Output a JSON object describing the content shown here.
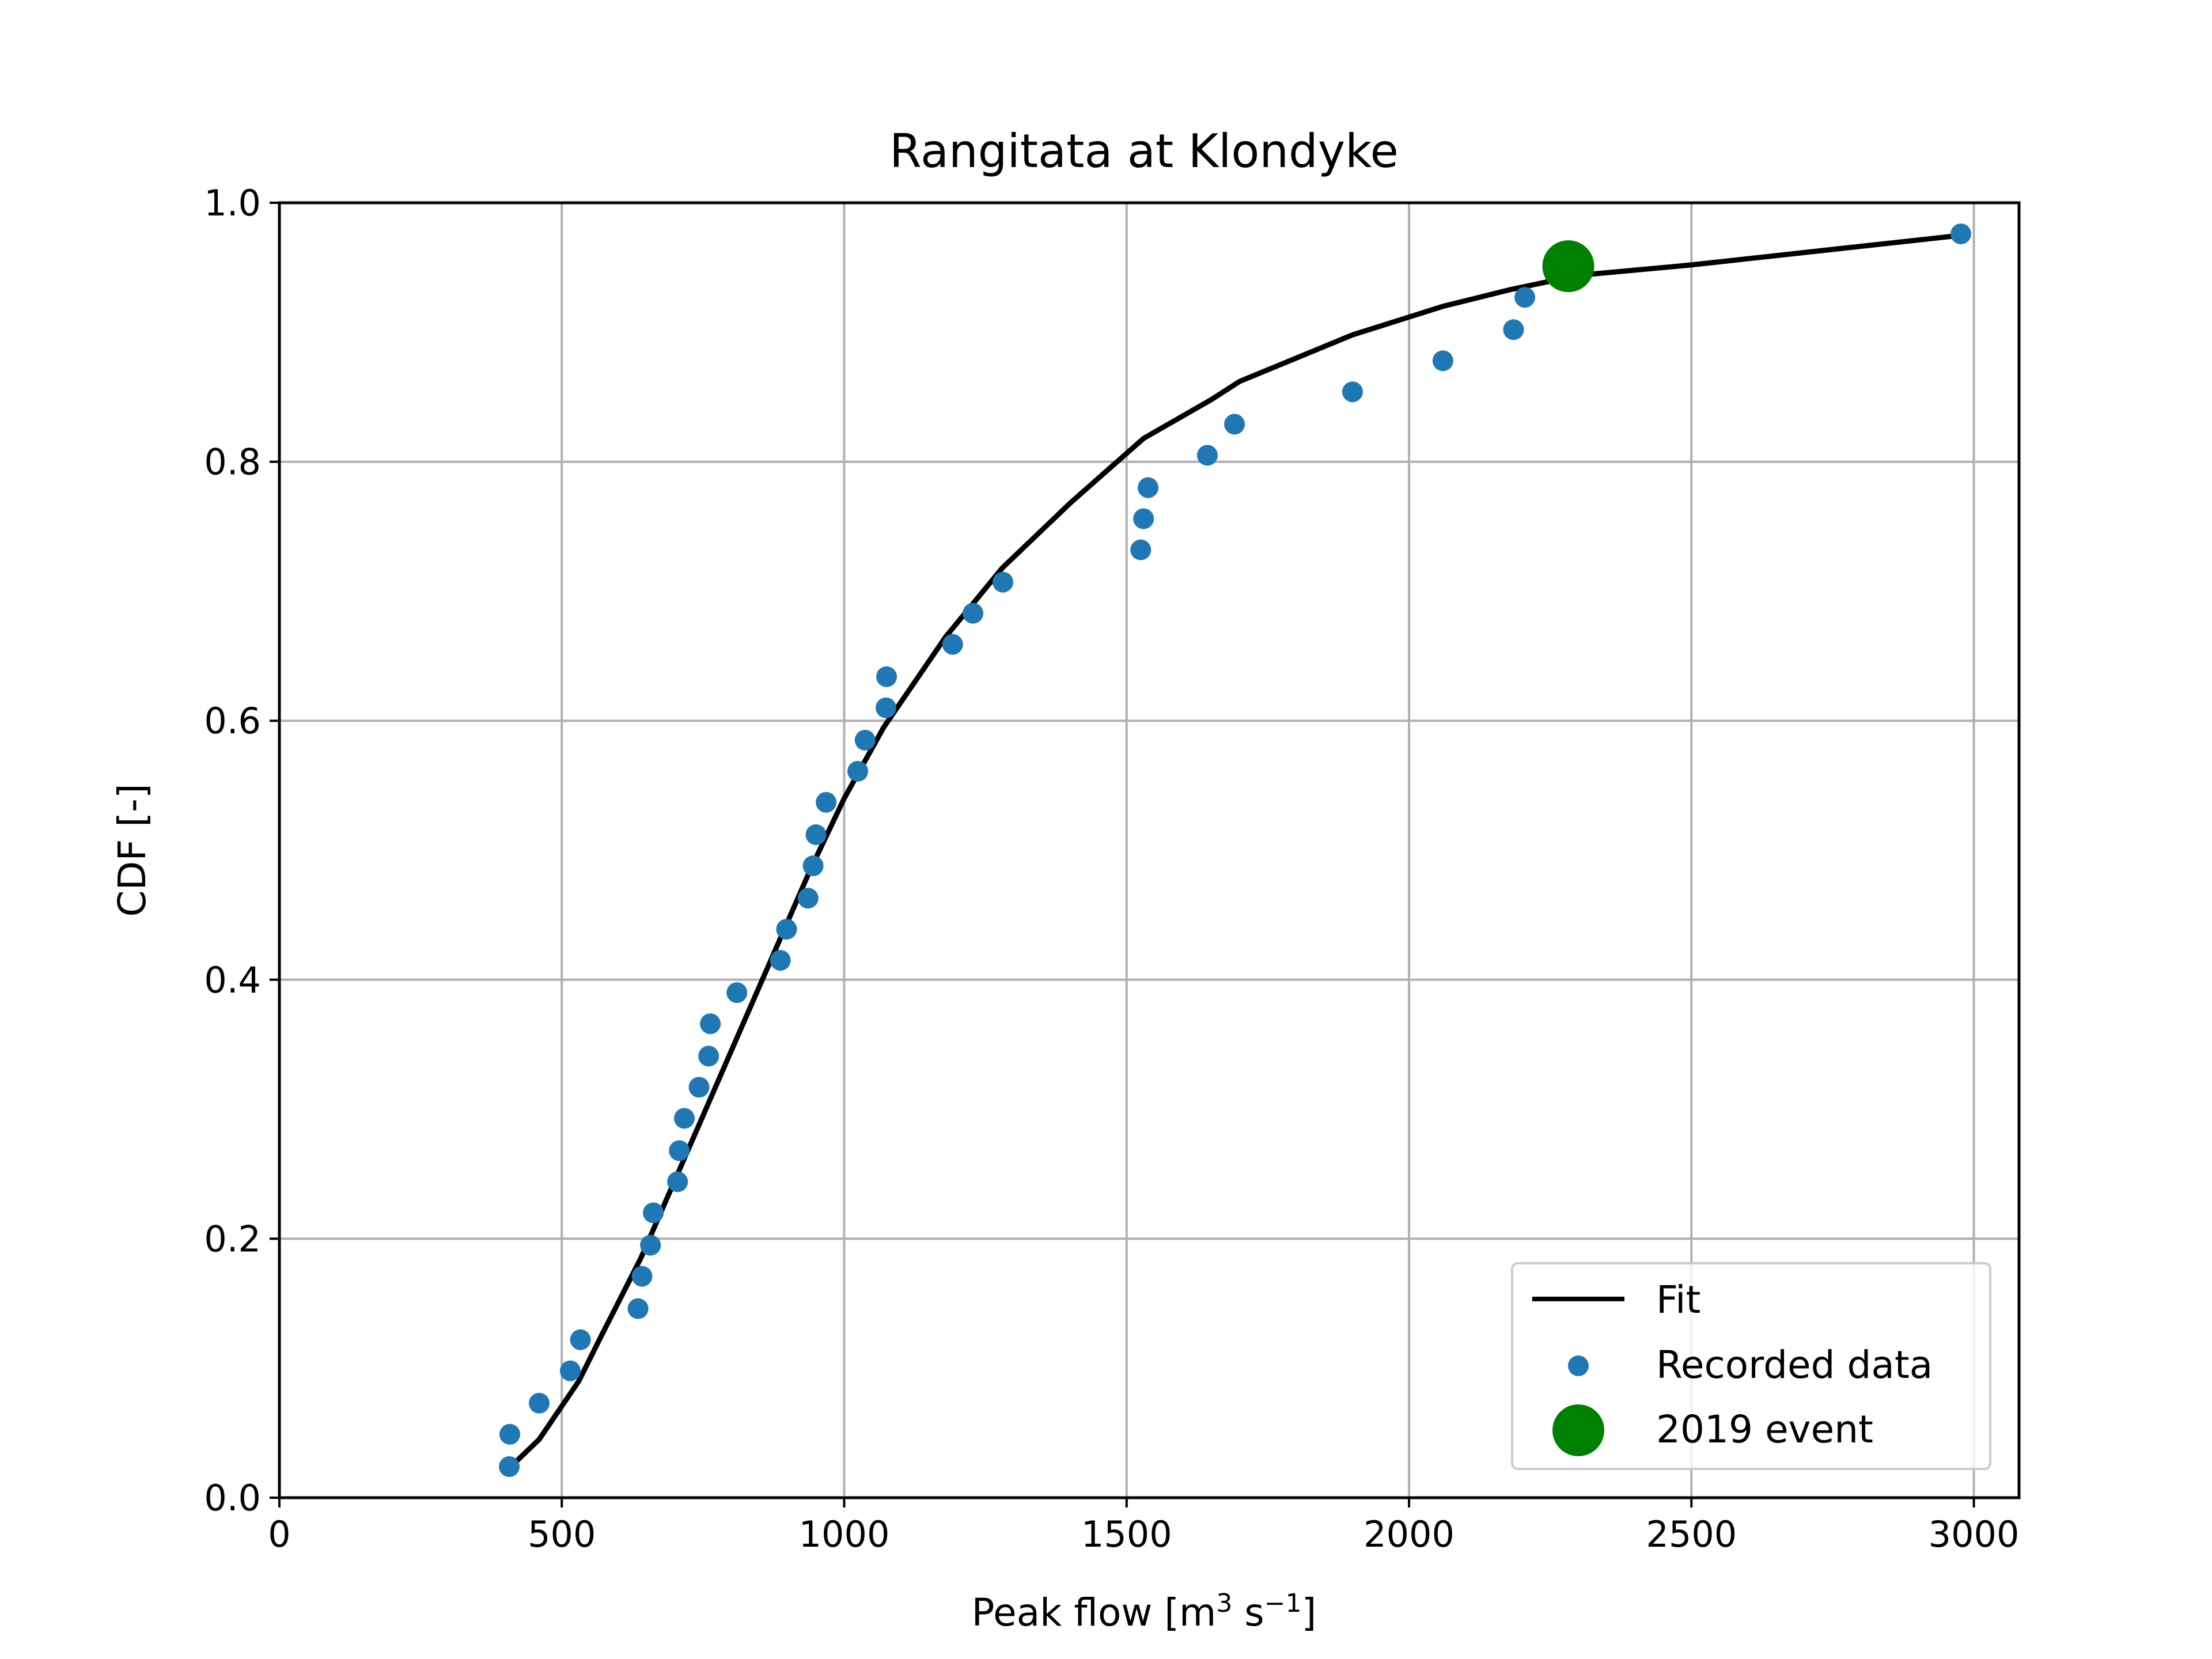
{
  "chart_data": {
    "type": "scatter",
    "title": "Rangitata at Klondyke",
    "xlabel": "Peak flow [m³ s⁻¹]",
    "ylabel": "CDF [-]",
    "xlim": [
      0,
      3080
    ],
    "ylim": [
      0,
      1.0
    ],
    "xticks": [
      0,
      500,
      1000,
      1500,
      2000,
      2500,
      3000
    ],
    "yticks": [
      0.0,
      0.2,
      0.4,
      0.6,
      0.8,
      1.0
    ],
    "xtick_labels": [
      "0",
      "500",
      "1000",
      "1500",
      "2000",
      "2500",
      "3000"
    ],
    "ytick_labels": [
      "0.0",
      "0.2",
      "0.4",
      "0.6",
      "0.8",
      "1.0"
    ],
    "grid": true,
    "reference_line": {
      "y": 1.0,
      "style": "dashed",
      "color": "#000000"
    },
    "legend_position": "lower-right",
    "series": [
      {
        "name": "Fit",
        "type": "line",
        "color": "#000000",
        "x": [
          405,
          460,
          530,
          570,
          640,
          700,
          760,
          820,
          880,
          940,
          1000,
          1070,
          1180,
          1280,
          1400,
          1530,
          1650,
          1700,
          1900,
          2060,
          2180,
          2300,
          2500,
          2980
        ],
        "y": [
          0.022,
          0.045,
          0.09,
          0.125,
          0.185,
          0.245,
          0.305,
          0.365,
          0.425,
          0.485,
          0.54,
          0.595,
          0.665,
          0.718,
          0.768,
          0.818,
          0.848,
          0.862,
          0.898,
          0.92,
          0.933,
          0.944,
          0.952,
          0.975
        ]
      },
      {
        "name": "Recorded data",
        "type": "scatter",
        "color": "#1f77b4",
        "x": [
          407,
          408,
          460,
          515,
          533,
          635,
          642,
          657,
          662,
          705,
          708,
          717,
          743,
          760,
          763,
          810,
          887,
          898,
          936,
          945,
          950,
          968,
          1024,
          1037,
          1074,
          1075,
          1192,
          1228,
          1281,
          1525,
          1530,
          1538,
          1643,
          1691,
          1900,
          2060,
          2185,
          2205,
          2977
        ],
        "y": [
          0.024,
          0.049,
          0.073,
          0.098,
          0.122,
          0.146,
          0.171,
          0.195,
          0.22,
          0.244,
          0.268,
          0.293,
          0.317,
          0.341,
          0.366,
          0.39,
          0.415,
          0.439,
          0.463,
          0.488,
          0.512,
          0.537,
          0.561,
          0.585,
          0.61,
          0.634,
          0.659,
          0.683,
          0.707,
          0.732,
          0.756,
          0.78,
          0.805,
          0.829,
          0.854,
          0.878,
          0.902,
          0.927,
          0.976
        ]
      },
      {
        "name": "2019 event",
        "type": "scatter",
        "color": "#008000",
        "x": [
          2282
        ],
        "y": [
          0.951
        ]
      }
    ]
  }
}
